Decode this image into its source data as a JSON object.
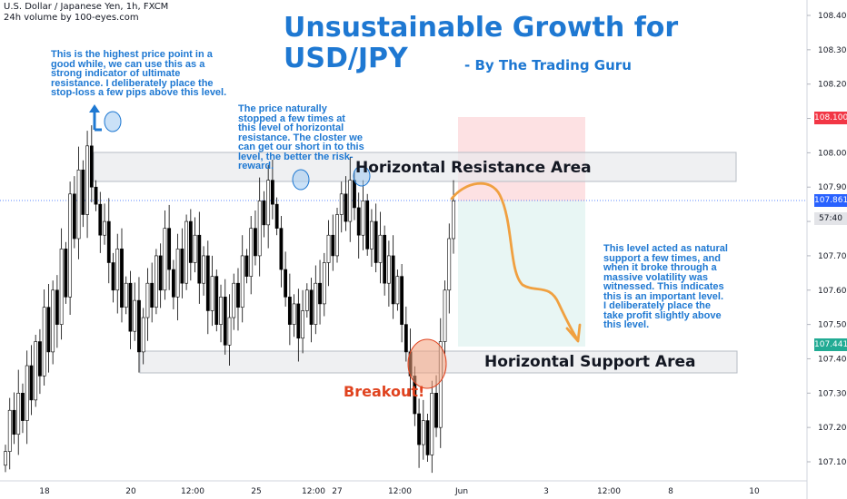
{
  "header": {
    "symbol_line": "U.S. Dollar / Japanese Yen, 1h, FXCM",
    "volume_line": "24h volume by 100-eyes.com"
  },
  "title": {
    "line1": "Unsustainable Growth for",
    "line2": "USD/JPY",
    "byline": "- By The Trading Guru"
  },
  "annotations": {
    "top_note": "This is the highest price point in a\ngood while, we can use this as a\nstrong indicator of ultimate\nresistance. I deliberately place the\nstop-loss a few pips above this level.",
    "mid_note": "The price naturally\nstopped a few times at\nthis level of horizontal\nresistance. The closter we\ncan get our short in to this\nlevel, the better the risk-\nreward.",
    "right_note": "This level acted as natural\nsupport a few times, and\nwhen it broke through a\nmassive volatility was\nwitnessed. This indicates\nthis is an important level.\nI deliberately place the\ntake profit slightly above\nthis level.",
    "resistance_label": "Horizontal Resistance Area",
    "support_label": "Horizontal Support Area",
    "breakout_label": "Breakout!"
  },
  "badges": {
    "stop": "108.100",
    "current": "107.861",
    "timer": "57:40",
    "target": "107.441"
  },
  "colors": {
    "up": "#ffffff",
    "down": "#000000",
    "accent": "#1e78d2",
    "stop_badge": "#f23645",
    "current_badge": "#2962ff",
    "target_badge": "#22ab94",
    "arrow": "#f0a040",
    "breakout": "#e0431f"
  },
  "chart_data": {
    "type": "candlestick",
    "ylim": [
      107.06,
      108.46
    ],
    "y_ticks": [
      "107.100",
      "107.200",
      "107.300",
      "107.400",
      "107.500",
      "107.600",
      "107.700",
      "107.800",
      "107.900",
      "108.000",
      "108.100",
      "108.200",
      "108.300",
      "108.400"
    ],
    "x_ticks": [
      "18",
      "20",
      "12:00",
      "25",
      "12:00",
      "27",
      "12:00",
      "Jun",
      "3",
      "12:00",
      "8",
      "10"
    ],
    "resistance_zone": [
      107.92,
      107.995
    ],
    "support_zone": [
      107.36,
      107.415
    ],
    "stop_level": 108.1,
    "entry_level": 107.86,
    "target_level": 107.441,
    "current_price": 107.861,
    "closes": [
      107.13,
      107.25,
      107.18,
      107.3,
      107.22,
      107.38,
      107.28,
      107.45,
      107.35,
      107.55,
      107.42,
      107.6,
      107.5,
      107.72,
      107.58,
      107.88,
      107.75,
      107.95,
      107.82,
      108.02,
      107.9,
      107.85,
      107.76,
      107.8,
      107.68,
      107.6,
      107.72,
      107.55,
      107.62,
      107.48,
      107.57,
      107.42,
      107.52,
      107.62,
      107.55,
      107.7,
      107.6,
      107.78,
      107.66,
      107.58,
      107.72,
      107.62,
      107.8,
      107.68,
      107.76,
      107.62,
      107.7,
      107.54,
      107.64,
      107.5,
      107.58,
      107.44,
      107.52,
      107.62,
      107.55,
      107.7,
      107.64,
      107.78,
      107.7,
      107.86,
      107.79,
      107.92,
      107.85,
      107.78,
      107.66,
      107.58,
      107.5,
      107.56,
      107.46,
      107.54,
      107.6,
      107.5,
      107.62,
      107.56,
      107.68,
      107.76,
      107.7,
      107.82,
      107.88,
      107.8,
      107.92,
      107.84,
      107.76,
      107.86,
      107.72,
      107.8,
      107.68,
      107.76,
      107.62,
      107.7,
      107.56,
      107.64,
      107.5,
      107.42,
      107.35,
      107.24,
      107.15,
      107.22,
      107.12,
      107.3,
      107.2,
      107.45,
      107.6,
      107.75,
      107.86
    ]
  }
}
